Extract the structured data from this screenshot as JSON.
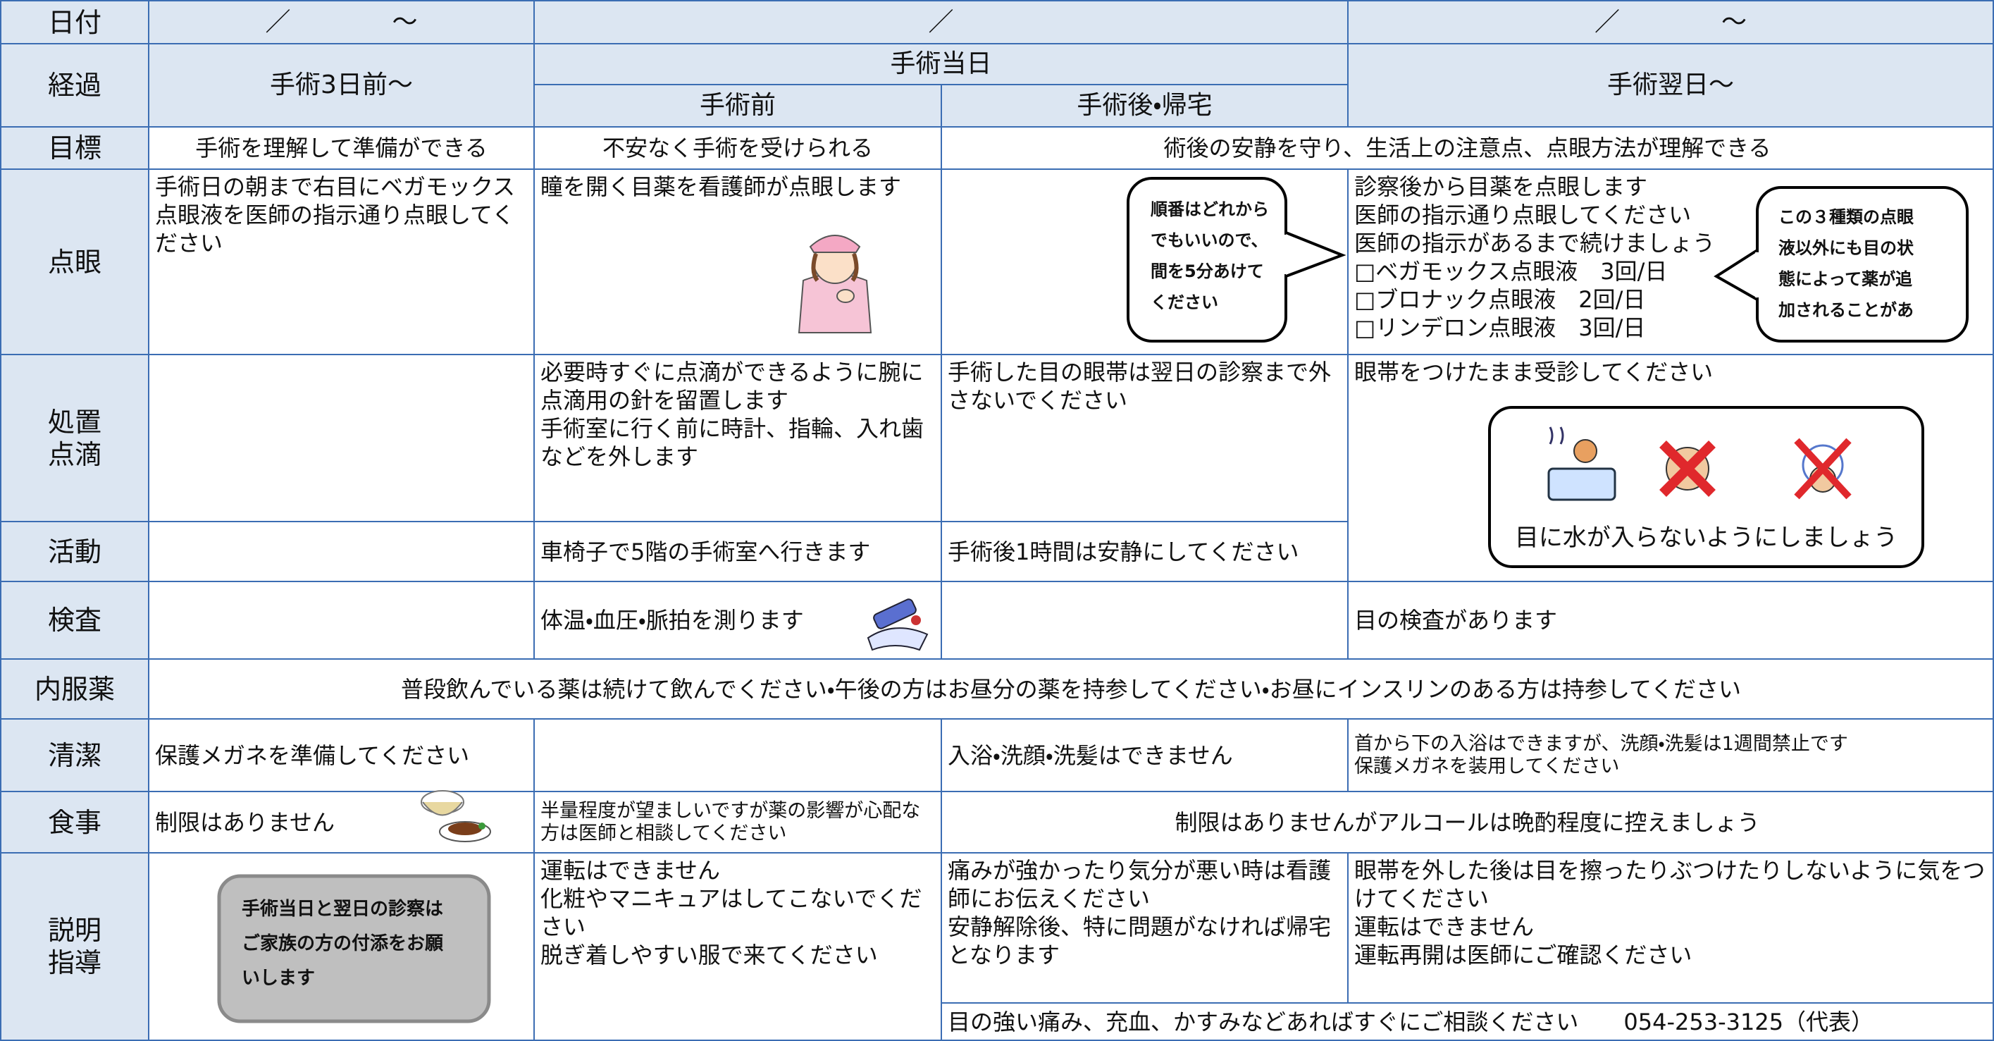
{
  "header": {
    "date_label": "日付",
    "date_pre": "／　　　　～",
    "date_day": "／",
    "date_post": "／　　　　～",
    "course_label": "経過",
    "pre": "手術3日前～",
    "day": "手術当日",
    "before": "手術前",
    "after": "手術後・帰宅",
    "post": "手術翌日～"
  },
  "rows": [
    {
      "label": [
        "目標"
      ],
      "cells": [
        [
          "手術を理解して準備ができる"
        ],
        [
          "不安なく手術を受けられる"
        ],
        [
          "術後の安静を守り、生活上の注意点、点眼方法が理解できる"
        ]
      ]
    },
    {
      "label": [
        "点眼"
      ],
      "cells": [
        [
          "手術日の朝まで右目にベガモックス点眼液を医師の指示通り点眼してください"
        ],
        [
          "瞳を開く目薬を看護師が点眼します"
        ],
        [
          "診察後から目薬を点眼します",
          "医師の指示通り点眼してください",
          "医師の指示があるまで続けましょう",
          "□ベガモックス点眼液　3回/日",
          "□ブロナック点眼液　2回/日",
          "□リンデロン点眼液　3回/日"
        ]
      ]
    },
    {
      "label": [
        "処置",
        "点滴"
      ],
      "cells": [
        [
          "必要時すぐに点滴ができるように腕に点滴用の針を留置します",
          "手術室に行く前に時計、指輪、入れ歯などを外します"
        ],
        [
          "手術した目の眼帯は翌日の診察まで外さないでください"
        ],
        [
          "眼帯をつけたまま受診してください"
        ]
      ]
    },
    {
      "label": [
        "活動"
      ],
      "cells": [
        [
          "車椅子で5階の手術室へ行きます"
        ],
        [
          "手術後1時間は安静にしてください"
        ]
      ]
    },
    {
      "label": [
        "検査"
      ],
      "cells": [
        [
          "体温・血圧・脈拍を測ります"
        ],
        [
          "目の検査があります"
        ]
      ]
    },
    {
      "label": [
        "内服薬"
      ],
      "cells": [
        [
          "普段飲んでいる薬は続けて飲んでください・午後の方はお昼分の薬を持参してください・お昼にインスリンのある方は持参してください"
        ]
      ]
    },
    {
      "label": [
        "清潔"
      ],
      "cells": [
        [
          "保護メガネを準備してください"
        ],
        [
          "入浴・洗顔・洗髪はできません"
        ],
        [
          "首から下の入浴はできますが、洗顔・洗髪は1週間禁止です",
          "保護メガネを装用してください"
        ]
      ]
    },
    {
      "label": [
        "食事"
      ],
      "cells": [
        [
          "制限はありません"
        ],
        [
          "半量程度が望ましいですが薬の影響が心配な方は医師と相談してください"
        ],
        [
          "制限はありませんがアルコールは晩酌程度に控えましょう"
        ]
      ]
    },
    {
      "label": [
        "説明",
        "指導"
      ],
      "cells": [
        [
          "運転はできません",
          "化粧やマニキュアはしてこないでください",
          "脱ぎ着しやすい服で来てください"
        ],
        [
          "痛みが強かったり気分が悪い時は看護師にお伝えください",
          "安静解除後、特に問題がなければ帰宅となります"
        ],
        [
          "眼帯を外した後は目を擦ったりぶつけたりしないように気をつけてください",
          "運転はできません",
          "運転再開は医師にご確認ください"
        ],
        [
          "目の強い痛み、充血、かすみなどあればすぐにご相談ください　　054-253-3125（代表）"
        ]
      ]
    }
  ],
  "notes": {
    "eyedrop_order": [
      "順番はどれから",
      "でもいいので、",
      "間を5分あけて",
      "ください"
    ],
    "eyedrop_extra": [
      "この３種類の点眼",
      "液以外にも目の状",
      "態によって薬が追",
      "加されることがあ"
    ],
    "water": "目に水が入らないようにしましょう",
    "family": [
      "手術当日と翌日の診察は",
      "ご家族の方の付添をお願",
      "いします"
    ]
  }
}
